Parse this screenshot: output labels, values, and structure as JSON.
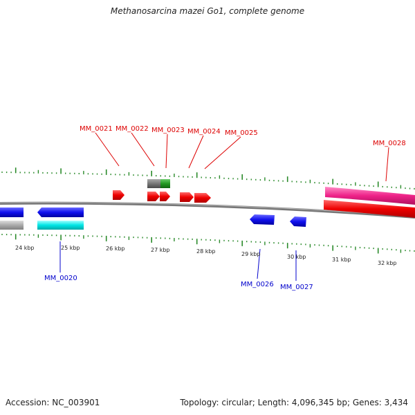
{
  "title": "Methanosarcina mazei Go1, complete genome",
  "footer": {
    "accession": "Accession: NC_003901",
    "summary": "Topology: circular; Length: 4,096,345 bp; Genes: 3,434"
  },
  "colors": {
    "forward_cds": "#ee0000",
    "reverse_cds": "#0000ee",
    "tick": "#2a8a2a",
    "backbone": "#888888",
    "forward_label": "#dd0000",
    "reverse_label": "#0000cc",
    "pink_feature": "#ee2288",
    "cyan_feature": "#00e5e5",
    "gray_feature": "#999999",
    "green_feature": "#229922"
  },
  "scale_labels": [
    "24 kbp",
    "25 kbp",
    "26 kbp",
    "27 kbp",
    "28 kbp",
    "29 kbp",
    "30 kbp",
    "31 kbp",
    "32 kbp"
  ],
  "gene_labels_forward": [
    "MM_0021",
    "MM_0022",
    "MM_0023",
    "MM_0024",
    "MM_0025",
    "MM_0028"
  ],
  "gene_labels_reverse": [
    "MM_0020",
    "MM_0026",
    "MM_0027"
  ]
}
